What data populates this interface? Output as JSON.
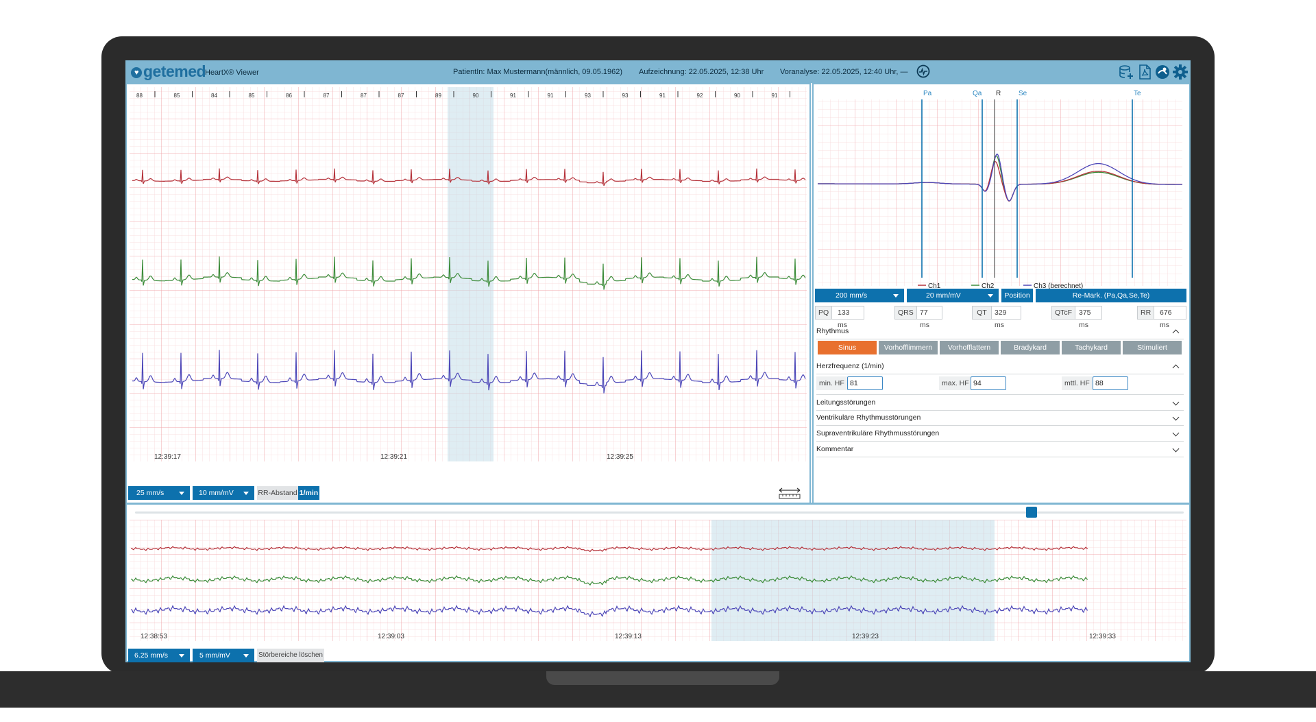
{
  "header": {
    "logo_text": "getemed",
    "app_title": "HeartX® Viewer",
    "patient": "PatientIn: Max Mustermann(männlich, 09.05.1962)",
    "recording": "Aufzeichnung: 22.05.2025, 12:38 Uhr",
    "preanalysis": "Voranalyse: 22.05.2025, 12:40 Uhr, —",
    "icons": [
      "ecg-search-icon",
      "database-add-icon",
      "pdf-export-icon",
      "user-clinic-icon",
      "gear-icon"
    ]
  },
  "ecg_strip": {
    "hr_values": [
      "88",
      "85",
      "84",
      "85",
      "86",
      "87",
      "87",
      "87",
      "89",
      "90",
      "91",
      "91",
      "93",
      "93",
      "91",
      "92",
      "90",
      "91"
    ],
    "time_labels": [
      "12:39:17",
      "12:39:21",
      "12:39:25"
    ],
    "speed": "25 mm/s",
    "gain": "10 mm/mV",
    "rr_label": "RR-Abstand",
    "rr_unit": "1/min",
    "channel_colors": [
      "#b5323a",
      "#3d8c3a",
      "#4d47b8"
    ]
  },
  "average_beat": {
    "markers": [
      "Pa",
      "Qa",
      "R",
      "Se",
      "Te"
    ],
    "legend": [
      "Ch1",
      "Ch2",
      "Ch3 (berechnet)"
    ],
    "speed": "200 mm/s",
    "gain": "20 mm/mV",
    "position_label": "Position",
    "remark_label": "Re-Mark. (Pa,Qa,Se,Te)"
  },
  "measurements": [
    {
      "label": "PQ",
      "value": "133 ms"
    },
    {
      "label": "QRS",
      "value": "77 ms"
    },
    {
      "label": "QT",
      "value": "329 ms"
    },
    {
      "label": "QTcF",
      "value": "375 ms"
    },
    {
      "label": "RR",
      "value": "676 ms"
    }
  ],
  "rhythm": {
    "title": "Rhythmus",
    "options": [
      "Sinus",
      "Vorhofflimmern",
      "Vorhofflattern",
      "Bradykard",
      "Tachykard",
      "Stimuliert"
    ],
    "selected": "Sinus"
  },
  "heart_rate": {
    "title": "Herzfrequenz (1/min)",
    "min_label": "min. HF",
    "min_value": "81",
    "max_label": "max. HF",
    "max_value": "94",
    "avg_label": "mttl. HF",
    "avg_value": "88"
  },
  "sections": [
    "Leitungsstörungen",
    "Ventrikuläre Rhythmusstörungen",
    "Supraventrikuläre Rhythmusstörungen",
    "Kommentar"
  ],
  "overview": {
    "time_labels": [
      "12:38:53",
      "12:39:03",
      "12:39:13",
      "12:39:23",
      "12:39:33"
    ],
    "speed": "6.25 mm/s",
    "gain": "5 mm/mV",
    "clear_label": "Störbereiche löschen",
    "slider_position": 0.855
  }
}
